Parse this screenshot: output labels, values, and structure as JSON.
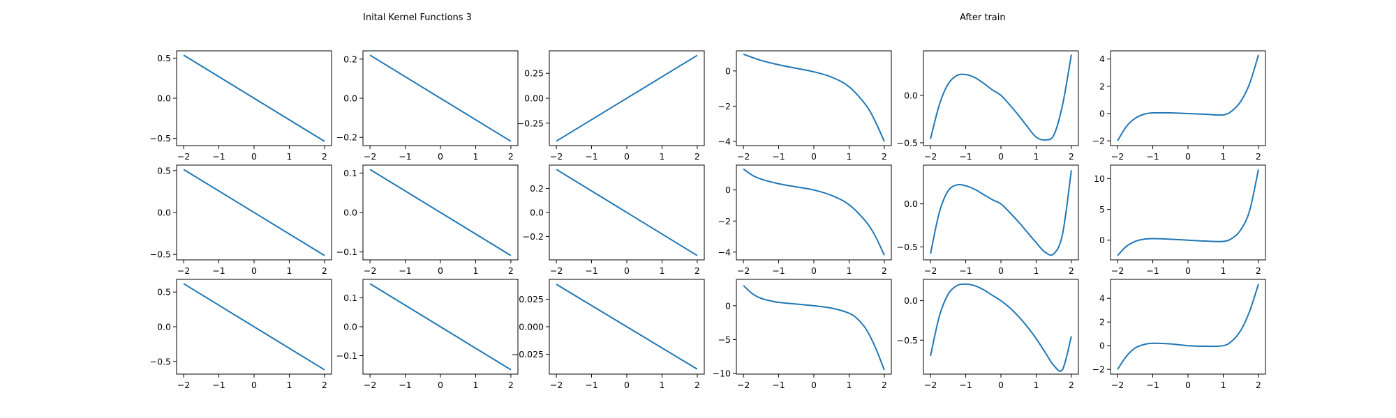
{
  "titles": {
    "left": "Inital Kernel Functions 3",
    "right": "After train"
  },
  "colors": {
    "line": "#1f77b4",
    "axes": "#000000"
  },
  "chart_data": [
    {
      "type": "line",
      "group": "left",
      "row": 0,
      "col": 0,
      "x_range": [
        -2,
        2
      ],
      "xlim": [
        -2.2,
        2.2
      ],
      "ylim": [
        -0.59,
        0.59
      ],
      "y": [
        0.537,
        -0.537
      ],
      "xticks": [
        "−2",
        "−1",
        "0",
        "1",
        "2"
      ],
      "yticks": [
        {
          "v": 0.5,
          "label": "0.5"
        },
        {
          "v": 0,
          "label": "0.0"
        },
        {
          "v": -0.5,
          "label": "−0.5"
        }
      ]
    },
    {
      "type": "line",
      "group": "left",
      "row": 0,
      "col": 1,
      "x_range": [
        -2,
        2
      ],
      "xlim": [
        -2.2,
        2.2
      ],
      "ylim": [
        -0.242,
        0.242
      ],
      "y": [
        0.22,
        -0.22
      ],
      "xticks": [
        "−2",
        "−1",
        "0",
        "1",
        "2"
      ],
      "yticks": [
        {
          "v": 0.2,
          "label": "0.2"
        },
        {
          "v": 0,
          "label": "0.0"
        },
        {
          "v": -0.2,
          "label": "−0.2"
        }
      ]
    },
    {
      "type": "line",
      "group": "left",
      "row": 0,
      "col": 2,
      "x_range": [
        -2,
        2
      ],
      "xlim": [
        -2.2,
        2.2
      ],
      "ylim": [
        -0.475,
        0.475
      ],
      "y": [
        -0.43,
        0.43
      ],
      "xticks": [
        "−2",
        "−1",
        "0",
        "1",
        "2"
      ],
      "yticks": [
        {
          "v": 0.25,
          "label": "0.25"
        },
        {
          "v": 0,
          "label": "0.00"
        },
        {
          "v": -0.25,
          "label": "−0.25"
        }
      ]
    },
    {
      "type": "line",
      "group": "left",
      "row": 1,
      "col": 0,
      "x_range": [
        -2,
        2
      ],
      "xlim": [
        -2.2,
        2.2
      ],
      "ylim": [
        -0.565,
        0.565
      ],
      "y": [
        0.513,
        -0.513
      ],
      "xticks": [
        "−2",
        "−1",
        "0",
        "1",
        "2"
      ],
      "yticks": [
        {
          "v": 0.5,
          "label": "0.5"
        },
        {
          "v": 0,
          "label": "0.0"
        },
        {
          "v": -0.5,
          "label": "−0.5"
        }
      ]
    },
    {
      "type": "line",
      "group": "left",
      "row": 1,
      "col": 1,
      "x_range": [
        -2,
        2
      ],
      "xlim": [
        -2.2,
        2.2
      ],
      "ylim": [
        -0.12,
        0.12
      ],
      "y": [
        0.109,
        -0.109
      ],
      "xticks": [
        "−2",
        "−1",
        "0",
        "1",
        "2"
      ],
      "yticks": [
        {
          "v": 0.1,
          "label": "0.1"
        },
        {
          "v": 0,
          "label": "0.0"
        },
        {
          "v": -0.1,
          "label": "−0.1"
        }
      ]
    },
    {
      "type": "line",
      "group": "left",
      "row": 1,
      "col": 2,
      "x_range": [
        -2,
        2
      ],
      "xlim": [
        -2.2,
        2.2
      ],
      "ylim": [
        -0.395,
        0.395
      ],
      "y": [
        0.359,
        -0.359
      ],
      "xticks": [
        "−2",
        "−1",
        "0",
        "1",
        "2"
      ],
      "yticks": [
        {
          "v": 0.2,
          "label": "0.2"
        },
        {
          "v": 0,
          "label": "0.0"
        },
        {
          "v": -0.2,
          "label": "−0.2"
        }
      ]
    },
    {
      "type": "line",
      "group": "left",
      "row": 2,
      "col": 0,
      "x_range": [
        -2,
        2
      ],
      "xlim": [
        -2.2,
        2.2
      ],
      "ylim": [
        -0.683,
        0.683
      ],
      "y": [
        0.621,
        -0.621
      ],
      "xticks": [
        "−2",
        "−1",
        "0",
        "1",
        "2"
      ],
      "yticks": [
        {
          "v": 0.5,
          "label": "0.5"
        },
        {
          "v": 0,
          "label": "0.0"
        },
        {
          "v": -0.5,
          "label": "−0.5"
        }
      ]
    },
    {
      "type": "line",
      "group": "left",
      "row": 2,
      "col": 1,
      "x_range": [
        -2,
        2
      ],
      "xlim": [
        -2.2,
        2.2
      ],
      "ylim": [
        -0.164,
        0.164
      ],
      "y": [
        0.149,
        -0.149
      ],
      "xticks": [
        "−2",
        "−1",
        "0",
        "1",
        "2"
      ],
      "yticks": [
        {
          "v": 0.1,
          "label": "0.1"
        },
        {
          "v": 0,
          "label": "0.0"
        },
        {
          "v": -0.1,
          "label": "−0.1"
        }
      ]
    },
    {
      "type": "line",
      "group": "left",
      "row": 2,
      "col": 2,
      "x_range": [
        -2,
        2
      ],
      "xlim": [
        -2.2,
        2.2
      ],
      "ylim": [
        -0.043,
        0.043
      ],
      "y": [
        0.0385,
        -0.0385
      ],
      "xticks": [
        "−2",
        "−1",
        "0",
        "1",
        "2"
      ],
      "yticks": [
        {
          "v": 0.025,
          "label": "0.025"
        },
        {
          "v": 0,
          "label": "0.000"
        },
        {
          "v": -0.025,
          "label": "−0.025"
        }
      ]
    },
    {
      "type": "line",
      "group": "right",
      "row": 0,
      "col": 0,
      "xlim": [
        -2.2,
        2.2
      ],
      "ylim": [
        -4.24,
        1.14
      ],
      "x": [
        -2,
        -1.5,
        -1,
        -0.5,
        0,
        0.5,
        1,
        1.5,
        1.75,
        2
      ],
      "y": [
        0.95,
        0.6,
        0.35,
        0.15,
        -0.05,
        -0.35,
        -0.9,
        -2.0,
        -2.9,
        -4.0
      ],
      "xticks": [
        "−2",
        "−1",
        "0",
        "1",
        "2"
      ],
      "yticks": [
        {
          "v": 0,
          "label": "0"
        },
        {
          "v": -2,
          "label": "−2"
        },
        {
          "v": -4,
          "label": "−4"
        }
      ]
    },
    {
      "type": "line",
      "group": "right",
      "row": 0,
      "col": 1,
      "xlim": [
        -2.2,
        2.2
      ],
      "ylim": [
        -0.53,
        0.47
      ],
      "x": [
        -2,
        -1.75,
        -1.5,
        -1.25,
        -1,
        -0.75,
        -0.5,
        -0.25,
        0,
        0.25,
        0.5,
        0.75,
        1,
        1.25,
        1.5,
        1.75,
        2
      ],
      "y": [
        -0.46,
        -0.1,
        0.12,
        0.21,
        0.22,
        0.19,
        0.13,
        0.06,
        0,
        -0.1,
        -0.21,
        -0.33,
        -0.44,
        -0.47,
        -0.42,
        -0.1,
        0.43
      ],
      "xticks": [
        "−2",
        "−1",
        "0",
        "1",
        "2"
      ],
      "yticks": [
        {
          "v": 0,
          "label": "0.0"
        },
        {
          "v": -0.5,
          "label": "−0.5"
        }
      ]
    },
    {
      "type": "line",
      "group": "right",
      "row": 0,
      "col": 2,
      "xlim": [
        -2.2,
        2.2
      ],
      "ylim": [
        -2.35,
        4.6
      ],
      "x": [
        -2,
        -1.75,
        -1.5,
        -1.25,
        -1,
        -0.5,
        0,
        0.5,
        1,
        1.25,
        1.5,
        1.75,
        2
      ],
      "y": [
        -2.0,
        -0.95,
        -0.35,
        -0.05,
        0.05,
        0.05,
        0,
        -0.05,
        -0.1,
        0.2,
        0.9,
        2.2,
        4.3
      ],
      "xticks": [
        "−2",
        "−1",
        "0",
        "1",
        "2"
      ],
      "yticks": [
        {
          "v": 4,
          "label": "4"
        },
        {
          "v": 2,
          "label": "2"
        },
        {
          "v": 0,
          "label": "0"
        },
        {
          "v": -2,
          "label": "−2"
        }
      ]
    },
    {
      "type": "line",
      "group": "right",
      "row": 1,
      "col": 0,
      "xlim": [
        -2.2,
        2.2
      ],
      "ylim": [
        -4.5,
        1.6
      ],
      "x": [
        -2,
        -1.75,
        -1.5,
        -1,
        -0.5,
        0,
        0.5,
        1,
        1.5,
        1.75,
        2
      ],
      "y": [
        1.35,
        0.95,
        0.7,
        0.4,
        0.2,
        0,
        -0.35,
        -0.95,
        -2.1,
        -3.0,
        -4.2
      ],
      "xticks": [
        "−2",
        "−1",
        "0",
        "1",
        "2"
      ],
      "yticks": [
        {
          "v": 0,
          "label": "0"
        },
        {
          "v": -2,
          "label": "−2"
        },
        {
          "v": -4,
          "label": "−4"
        }
      ]
    },
    {
      "type": "line",
      "group": "right",
      "row": 1,
      "col": 1,
      "xlim": [
        -2.2,
        2.2
      ],
      "ylim": [
        -0.65,
        0.45
      ],
      "x": [
        -2,
        -1.75,
        -1.5,
        -1.25,
        -1,
        -0.75,
        -0.5,
        -0.25,
        0,
        0.25,
        0.5,
        0.75,
        1,
        1.25,
        1.5,
        1.75,
        2
      ],
      "y": [
        -0.58,
        -0.1,
        0.15,
        0.22,
        0.21,
        0.17,
        0.11,
        0.05,
        0,
        -0.1,
        -0.21,
        -0.33,
        -0.45,
        -0.56,
        -0.58,
        -0.35,
        0.39
      ],
      "xticks": [
        "−2",
        "−1",
        "0",
        "1",
        "2"
      ],
      "yticks": [
        {
          "v": 0,
          "label": "0.0"
        },
        {
          "v": -0.5,
          "label": "−0.5"
        }
      ]
    },
    {
      "type": "line",
      "group": "right",
      "row": 1,
      "col": 2,
      "xlim": [
        -2.2,
        2.2
      ],
      "ylim": [
        -3.2,
        12.2
      ],
      "x": [
        -2,
        -1.75,
        -1.5,
        -1.25,
        -1,
        -0.5,
        0,
        0.5,
        1,
        1.25,
        1.5,
        1.75,
        2
      ],
      "y": [
        -2.5,
        -1.0,
        -0.2,
        0.15,
        0.25,
        0.15,
        0,
        -0.15,
        -0.2,
        0.3,
        1.7,
        4.8,
        11.5
      ],
      "xticks": [
        "−2",
        "−1",
        "0",
        "1",
        "2"
      ],
      "yticks": [
        {
          "v": 10,
          "label": "10"
        },
        {
          "v": 5,
          "label": "5"
        },
        {
          "v": 0,
          "label": "0"
        }
      ]
    },
    {
      "type": "line",
      "group": "right",
      "row": 2,
      "col": 0,
      "xlim": [
        -2.2,
        2.2
      ],
      "ylim": [
        -10.1,
        3.9
      ],
      "x": [
        -2,
        -1.75,
        -1.5,
        -1.25,
        -1,
        -0.5,
        0,
        0.5,
        1,
        1.25,
        1.5,
        1.75,
        2
      ],
      "y": [
        3.0,
        1.8,
        1.1,
        0.75,
        0.5,
        0.25,
        0,
        -0.35,
        -1.1,
        -2.0,
        -3.6,
        -6.2,
        -9.5
      ],
      "xticks": [
        "−2",
        "−1",
        "0",
        "1",
        "2"
      ],
      "yticks": [
        {
          "v": 0,
          "label": "0"
        },
        {
          "v": -5,
          "label": "−5"
        },
        {
          "v": -10,
          "label": "−10"
        }
      ]
    },
    {
      "type": "line",
      "group": "right",
      "row": 2,
      "col": 1,
      "xlim": [
        -2.2,
        2.2
      ],
      "ylim": [
        -0.93,
        0.27
      ],
      "x": [
        -2,
        -1.75,
        -1.5,
        -1.25,
        -1,
        -0.75,
        -0.5,
        -0.25,
        0,
        0.25,
        0.5,
        0.75,
        1,
        1.25,
        1.5,
        1.75,
        2
      ],
      "y": [
        -0.7,
        -0.2,
        0.08,
        0.19,
        0.21,
        0.19,
        0.14,
        0.07,
        0,
        -0.09,
        -0.2,
        -0.33,
        -0.48,
        -0.65,
        -0.82,
        -0.87,
        -0.45
      ],
      "xticks": [
        "−2",
        "−1",
        "0",
        "1",
        "2"
      ],
      "yticks": [
        {
          "v": 0,
          "label": "0.0"
        },
        {
          "v": -0.5,
          "label": "−0.5"
        }
      ]
    },
    {
      "type": "line",
      "group": "right",
      "row": 2,
      "col": 2,
      "xlim": [
        -2.2,
        2.2
      ],
      "ylim": [
        -2.4,
        5.6
      ],
      "x": [
        -2,
        -1.75,
        -1.5,
        -1.25,
        -1,
        -0.5,
        0,
        0.5,
        1,
        1.25,
        1.5,
        1.75,
        2
      ],
      "y": [
        -2.0,
        -0.9,
        -0.2,
        0.1,
        0.2,
        0.15,
        0,
        -0.05,
        0,
        0.4,
        1.3,
        2.9,
        5.2
      ],
      "xticks": [
        "−2",
        "−1",
        "0",
        "1",
        "2"
      ],
      "yticks": [
        {
          "v": 4,
          "label": "4"
        },
        {
          "v": 2,
          "label": "2"
        },
        {
          "v": 0,
          "label": "0"
        },
        {
          "v": -2,
          "label": "−2"
        }
      ]
    }
  ]
}
